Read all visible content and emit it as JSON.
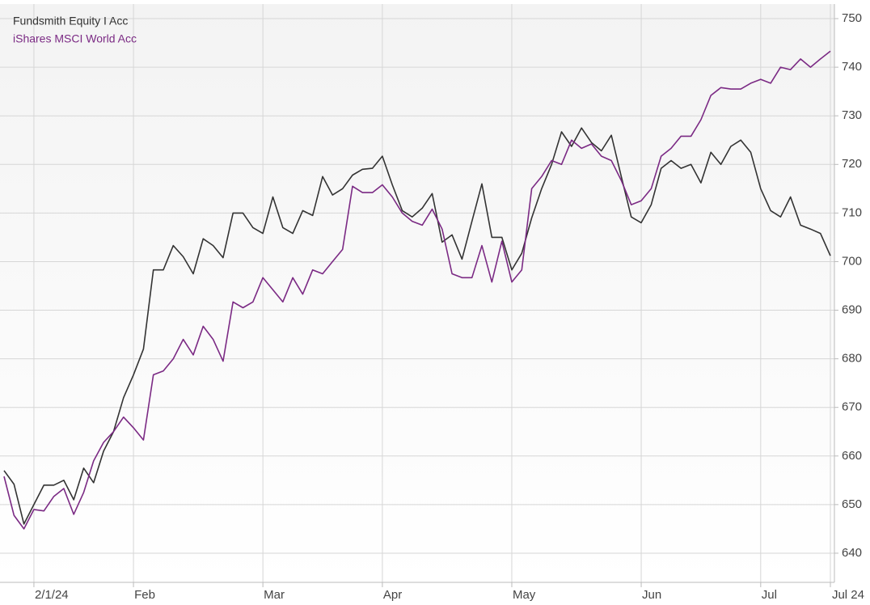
{
  "chart_data": {
    "type": "line",
    "categories": [
      null,
      null,
      null,
      "2/1/24",
      null,
      null,
      null,
      null,
      null,
      null,
      null,
      null,
      null,
      "Feb",
      null,
      null,
      null,
      null,
      null,
      null,
      null,
      null,
      null,
      null,
      null,
      null,
      "Mar",
      null,
      null,
      null,
      null,
      null,
      null,
      null,
      null,
      null,
      null,
      null,
      "Apr",
      null,
      null,
      null,
      null,
      null,
      null,
      null,
      null,
      null,
      null,
      null,
      null,
      "May",
      null,
      null,
      null,
      null,
      null,
      null,
      null,
      null,
      null,
      null,
      null,
      null,
      "Jun",
      null,
      null,
      null,
      null,
      null,
      null,
      null,
      null,
      null,
      null,
      null,
      "Jul",
      null,
      null,
      null,
      null,
      null,
      null,
      "Jul 24"
    ],
    "series": [
      {
        "name": "Fundsmith Equity I Acc",
        "color": "#333333",
        "values": [
          657,
          654.2,
          646,
          650,
          654,
          654,
          655,
          651,
          657.5,
          654.5,
          661,
          665,
          672,
          676.7,
          682,
          698.3,
          698.3,
          703.3,
          701,
          697.5,
          704.7,
          703.3,
          700.8,
          710,
          710,
          707,
          705.8,
          713.3,
          707,
          705.8,
          710.5,
          709.5,
          717.5,
          713.7,
          715,
          717.8,
          719,
          719.2,
          721.7,
          715.8,
          710.5,
          709.2,
          711,
          714,
          704,
          705.5,
          700.5,
          708.3,
          716,
          705,
          705,
          698.3,
          701.7,
          709,
          715,
          720,
          726.7,
          723.7,
          727.5,
          724.5,
          722.8,
          726,
          717.5,
          709.2,
          708,
          711.7,
          719.2,
          720.8,
          719.2,
          720,
          716.2,
          722.5,
          720,
          723.7,
          725,
          722.5,
          715,
          710.5,
          709.2,
          713.3,
          707.5,
          706.7,
          705.8,
          701.2
        ]
      },
      {
        "name": "iShares MSCI World Acc",
        "color": "#7b2a84",
        "values": [
          655.8,
          647.8,
          645,
          649,
          648.7,
          651.7,
          653.3,
          648,
          652.5,
          659,
          662.8,
          665,
          668,
          665.8,
          663.3,
          676.7,
          677.5,
          680,
          684,
          680.8,
          686.7,
          684,
          679.5,
          691.7,
          690.5,
          691.7,
          696.7,
          694.2,
          691.7,
          696.7,
          693.3,
          698.3,
          697.5,
          700,
          702.5,
          715.5,
          714.2,
          714.2,
          715.8,
          713.3,
          710,
          708.3,
          707.5,
          710.8,
          706.7,
          697.5,
          696.7,
          696.7,
          703.3,
          695.8,
          704.2,
          695.8,
          698.3,
          715,
          717.5,
          720.8,
          720,
          725,
          723.3,
          724.2,
          721.7,
          720.8,
          716.7,
          711.7,
          712.5,
          715,
          721.7,
          723.3,
          725.8,
          725.8,
          729.2,
          734.2,
          735.8,
          735.5,
          735.5,
          736.7,
          737.5,
          736.7,
          740,
          739.5,
          741.7,
          740,
          741.7,
          743.3
        ]
      }
    ],
    "ylim": [
      634,
      753
    ],
    "yticks": [
      640,
      650,
      660,
      670,
      680,
      690,
      700,
      710,
      720,
      730,
      740,
      750
    ],
    "grid": true
  }
}
